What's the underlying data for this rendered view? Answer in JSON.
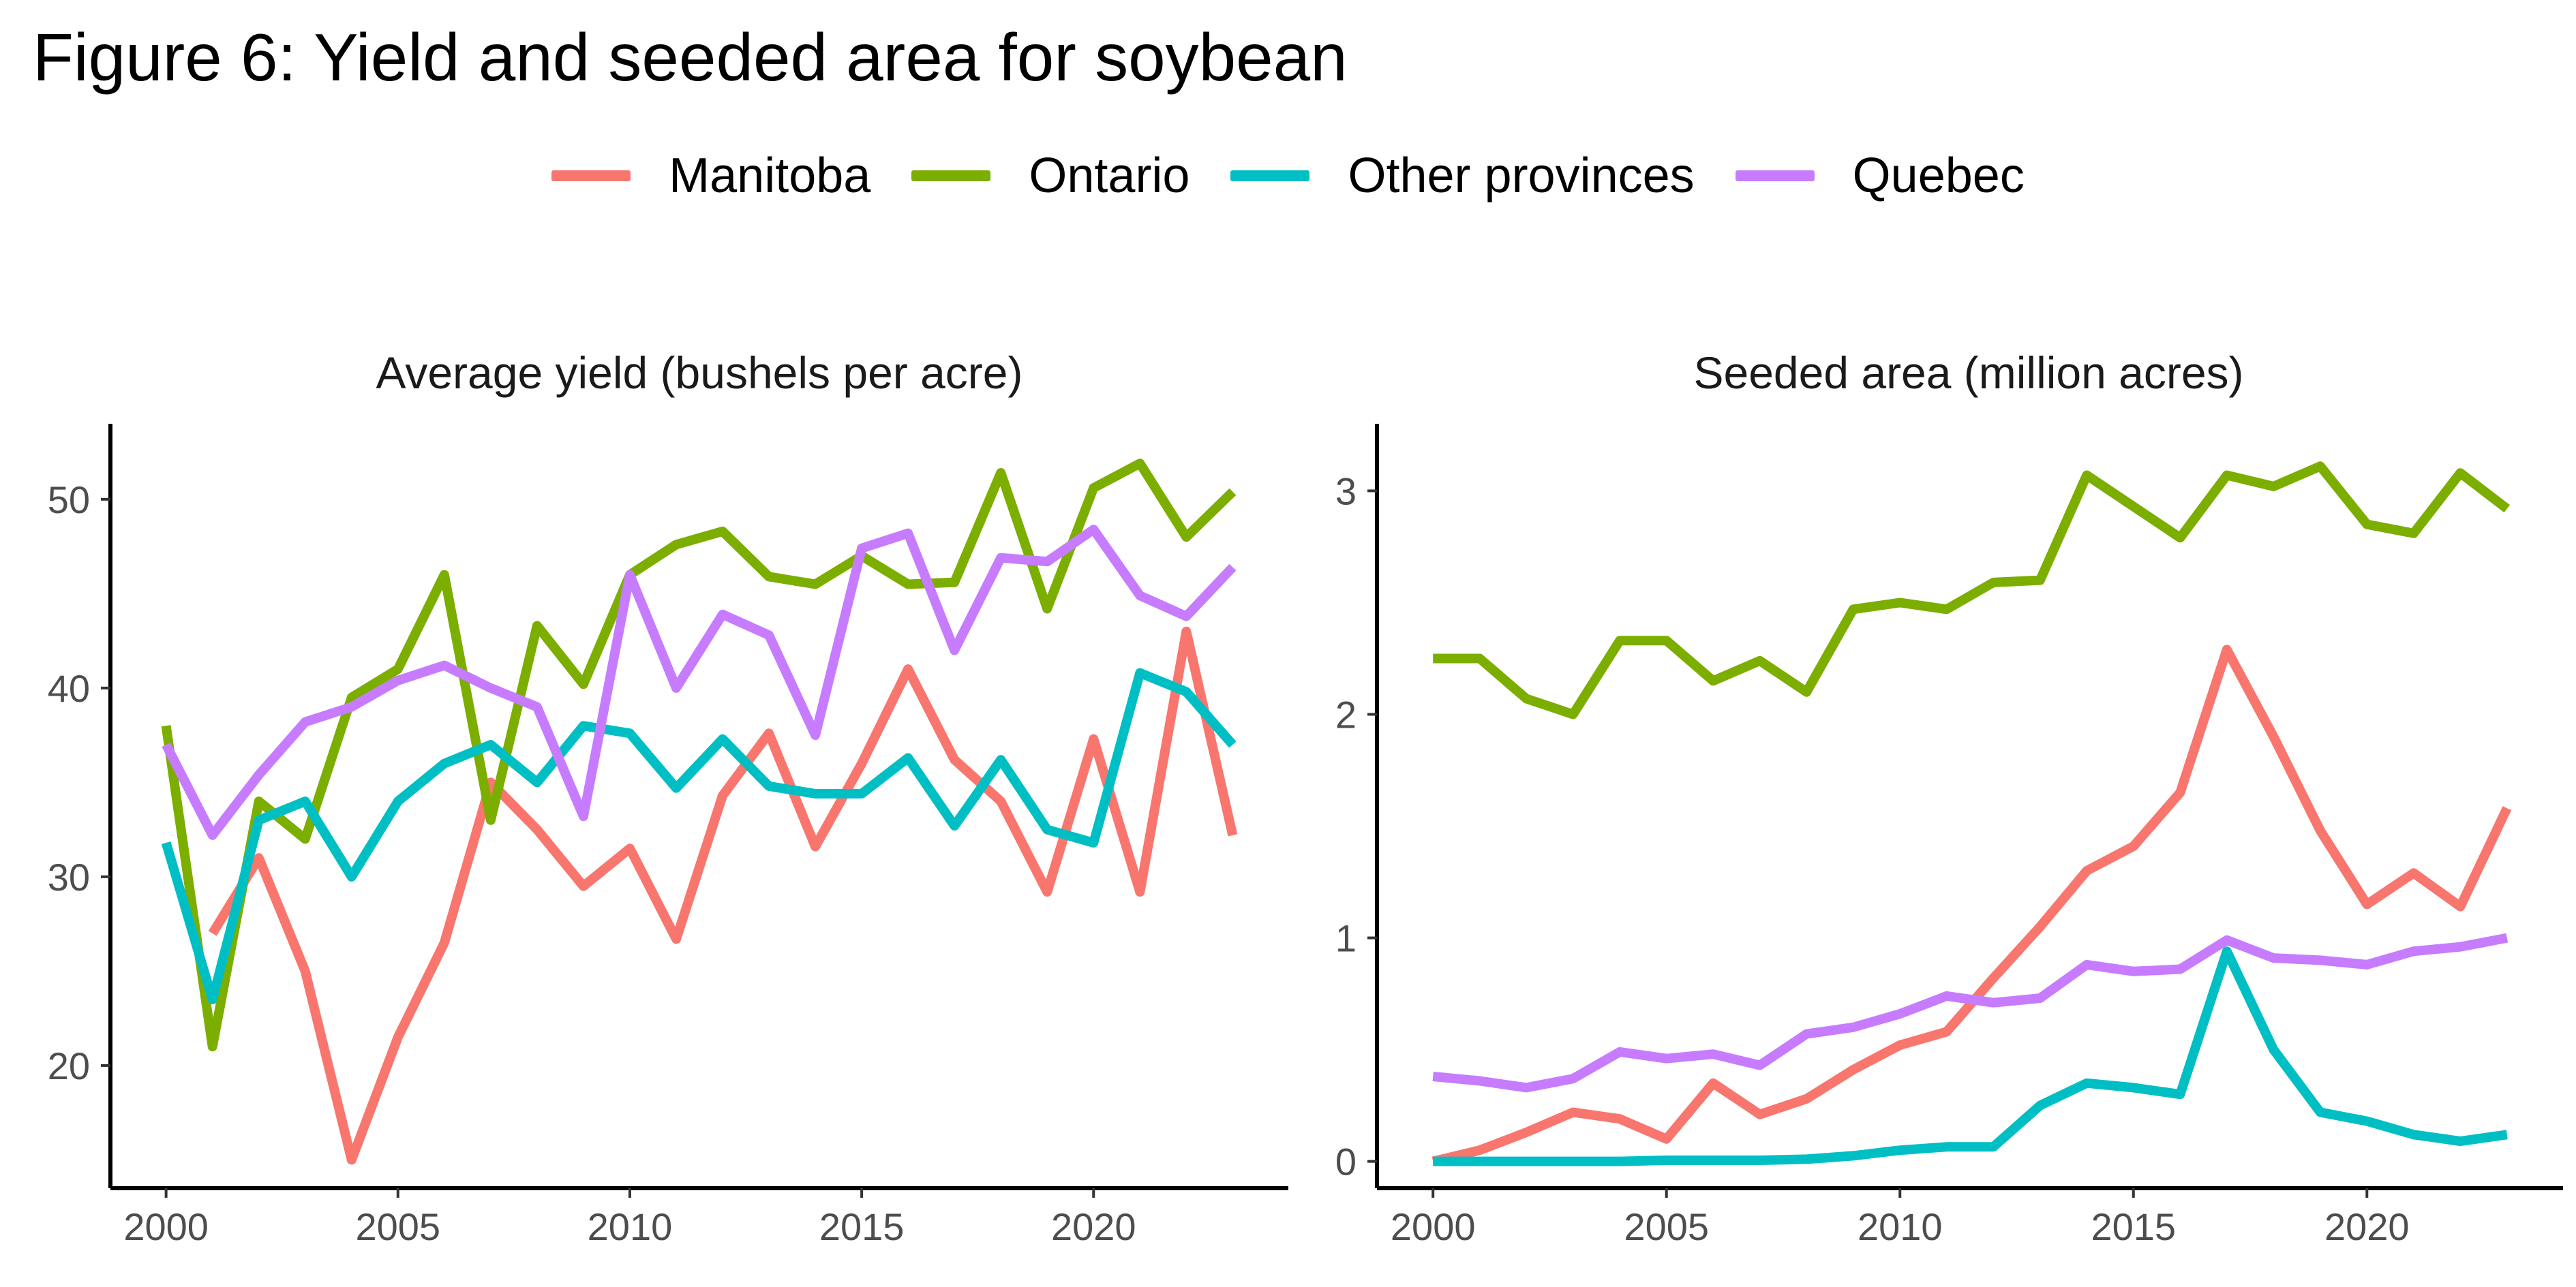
{
  "figure_title": "Figure 6: Yield and seeded area for soybean",
  "legend": [
    {
      "name": "Manitoba",
      "color": "#F8766D"
    },
    {
      "name": "Ontario",
      "color": "#7CAE00"
    },
    {
      "name": "Other provinces",
      "color": "#00BFC4"
    },
    {
      "name": "Quebec",
      "color": "#C77CFF"
    }
  ],
  "chart_data": [
    {
      "type": "line",
      "title": "Average yield (bushels per acre)",
      "xlabel": "",
      "ylabel": "",
      "x": [
        2000,
        2001,
        2002,
        2003,
        2004,
        2005,
        2006,
        2007,
        2008,
        2009,
        2010,
        2011,
        2012,
        2013,
        2014,
        2015,
        2016,
        2017,
        2018,
        2019,
        2020,
        2021,
        2022,
        2023
      ],
      "xlim": [
        1998.8,
        2024.2
      ],
      "ylim": [
        13.5,
        54
      ],
      "xticks": [
        2000,
        2005,
        2010,
        2015,
        2020
      ],
      "yticks": [
        20,
        30,
        40,
        50
      ],
      "grid": false,
      "series": [
        {
          "name": "Manitoba",
          "color": "#F8766D",
          "values": [
            null,
            27,
            31,
            25,
            15,
            21.5,
            26.5,
            35,
            32.5,
            29.5,
            31.5,
            26.7,
            34.3,
            37.6,
            31.6,
            36,
            41,
            36.2,
            34,
            29.2,
            37.3,
            29.2,
            43,
            32.2
          ]
        },
        {
          "name": "Ontario",
          "color": "#7CAE00",
          "values": [
            38,
            21,
            34,
            32,
            39.5,
            41,
            46,
            33,
            43.3,
            40.2,
            46,
            47.6,
            48.3,
            45.9,
            45.5,
            47,
            45.5,
            45.6,
            51.4,
            44.2,
            50.6,
            51.9,
            48,
            50.4
          ]
        },
        {
          "name": "Other provinces",
          "color": "#00BFC4",
          "values": [
            31.8,
            23.5,
            33,
            34,
            30,
            34,
            36,
            37,
            35,
            38,
            37.6,
            34.7,
            37.3,
            34.8,
            34.4,
            34.4,
            36.3,
            32.7,
            36.2,
            32.5,
            31.8,
            40.8,
            39.8,
            37
          ]
        },
        {
          "name": "Quebec",
          "color": "#C77CFF",
          "values": [
            37,
            32.2,
            35.4,
            38.2,
            39,
            40.4,
            41.2,
            40,
            39,
            33.2,
            46,
            40,
            43.9,
            42.8,
            37.5,
            47.4,
            48.2,
            42,
            46.9,
            46.7,
            48.4,
            44.9,
            43.8,
            46.4
          ]
        }
      ]
    },
    {
      "type": "line",
      "title": "Seeded area (million acres)",
      "xlabel": "",
      "ylabel": "",
      "x": [
        2000,
        2001,
        2002,
        2003,
        2004,
        2005,
        2006,
        2007,
        2008,
        2009,
        2010,
        2011,
        2012,
        2013,
        2014,
        2015,
        2016,
        2017,
        2018,
        2019,
        2020,
        2021,
        2022,
        2023
      ],
      "xlim": [
        1998.8,
        2024.2
      ],
      "ylim": [
        -0.12,
        3.3
      ],
      "xticks": [
        2000,
        2005,
        2010,
        2015,
        2020
      ],
      "yticks": [
        0,
        1,
        2,
        3
      ],
      "grid": false,
      "series": [
        {
          "name": "Manitoba",
          "color": "#F8766D",
          "values": [
            0,
            0.05,
            0.13,
            0.22,
            0.19,
            0.1,
            0.35,
            0.21,
            0.28,
            0.41,
            0.52,
            0.58,
            0.82,
            1.05,
            1.3,
            1.41,
            1.65,
            2.29,
            1.9,
            1.48,
            1.15,
            1.29,
            1.14,
            1.58
          ]
        },
        {
          "name": "Ontario",
          "color": "#7CAE00",
          "values": [
            2.25,
            2.25,
            2.07,
            2,
            2.33,
            2.33,
            2.15,
            2.24,
            2.1,
            2.47,
            2.5,
            2.47,
            2.59,
            2.6,
            3.07,
            2.93,
            2.79,
            3.07,
            3.02,
            3.11,
            2.85,
            2.81,
            3.08,
            2.92
          ]
        },
        {
          "name": "Other provinces",
          "color": "#00BFC4",
          "values": [
            0,
            0,
            0,
            0,
            0,
            0.005,
            0.005,
            0.005,
            0.01,
            0.025,
            0.05,
            0.065,
            0.065,
            0.25,
            0.35,
            0.33,
            0.3,
            0.94,
            0.5,
            0.22,
            0.18,
            0.12,
            0.09,
            0.12
          ]
        },
        {
          "name": "Quebec",
          "color": "#C77CFF",
          "values": [
            0.38,
            0.36,
            0.33,
            0.37,
            0.49,
            0.46,
            0.48,
            0.43,
            0.57,
            0.6,
            0.66,
            0.74,
            0.71,
            0.73,
            0.88,
            0.85,
            0.86,
            0.99,
            0.91,
            0.9,
            0.88,
            0.94,
            0.96,
            1
          ]
        }
      ]
    }
  ]
}
